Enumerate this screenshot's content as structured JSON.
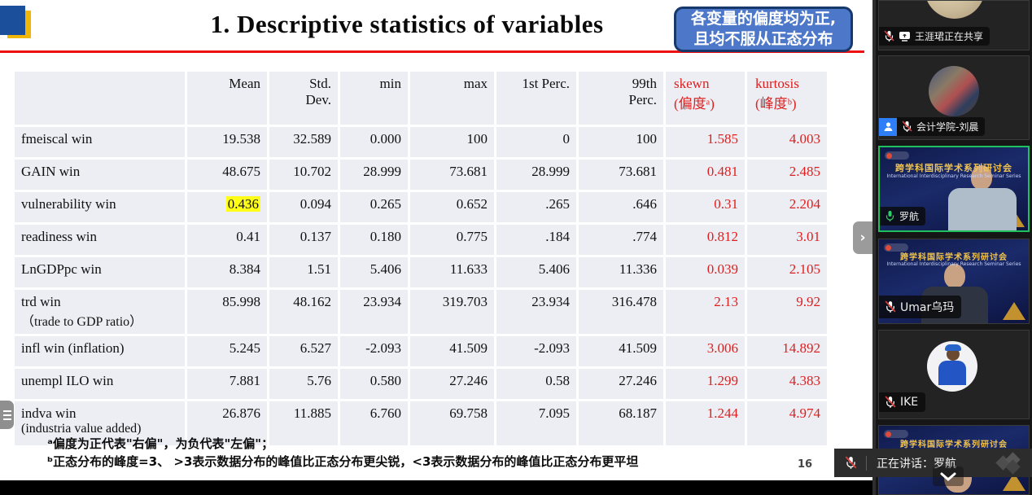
{
  "slide": {
    "title": "1. Descriptive statistics of variables",
    "callout_line1": "各变量的偏度均为正,",
    "callout_line2": "且均不服从正态分布",
    "footnote_a": "ᵃ偏度为正代表\"右偏\"，为负代表\"左偏\"；",
    "footnote_b": "ᵇ正态分布的峰度=3、 >3表示数据分布的峰值比正态分布更尖锐，<3表示数据分布的峰值比正态分布更平坦",
    "page_number": "16"
  },
  "table": {
    "headers": [
      {
        "l1": "",
        "l2": ""
      },
      {
        "l1": "Mean",
        "l2": ""
      },
      {
        "l1": "Std.",
        "l2": "Dev."
      },
      {
        "l1": "min",
        "l2": ""
      },
      {
        "l1": "max",
        "l2": ""
      },
      {
        "l1": "1st Perc.",
        "l2": ""
      },
      {
        "l1": "99th",
        "l2": "Perc."
      },
      {
        "l1": "skewn",
        "l2": "(偏度ᵃ)",
        "red": true
      },
      {
        "l1": "kurtosis",
        "l2": "(峰度ᵇ)",
        "red": true
      }
    ],
    "rows": [
      {
        "name": "fmeiscal win",
        "sub": "",
        "values": [
          "19.538",
          "32.589",
          "0.000",
          "100",
          "0",
          "100",
          "1.585",
          "4.003"
        ]
      },
      {
        "name": "GAIN win",
        "sub": "",
        "values": [
          "48.675",
          "10.702",
          "28.999",
          "73.681",
          "28.999",
          "73.681",
          "0.481",
          "2.485"
        ]
      },
      {
        "name": "vulnerability win",
        "sub": "",
        "highlight": 0,
        "values": [
          "0.436",
          "0.094",
          "0.265",
          "0.652",
          ".265",
          ".646",
          "0.31",
          "2.204"
        ]
      },
      {
        "name": "readiness win",
        "sub": "",
        "values": [
          "0.41",
          "0.137",
          "0.180",
          "0.775",
          ".184",
          ".774",
          "0.812",
          "3.01"
        ]
      },
      {
        "name": "LnGDPpc win",
        "sub": "",
        "values": [
          "8.384",
          "1.51",
          "5.406",
          "11.633",
          "5.406",
          "11.336",
          "0.039",
          "2.105"
        ]
      },
      {
        "name": "trd win",
        "sub": "（trade to GDP ratio）",
        "values": [
          "85.998",
          "48.162",
          "23.934",
          "319.703",
          "23.934",
          "316.478",
          "2.13",
          "9.92"
        ]
      },
      {
        "name": "infl win  (inflation)",
        "sub": "",
        "values": [
          "5.245",
          "6.527",
          "-2.093",
          "41.509",
          "-2.093",
          "41.509",
          "3.006",
          "14.892"
        ]
      },
      {
        "name": "unempl ILO win",
        "sub": "",
        "values": [
          "7.881",
          "5.76",
          "0.580",
          "27.246",
          "0.58",
          "27.246",
          "1.299",
          "4.383"
        ]
      },
      {
        "name": "indva win",
        "sub": "(industria value added)",
        "values": [
          "26.876",
          "11.885",
          "6.760",
          "69.758",
          "7.095",
          "68.187",
          "1.244",
          "4.974"
        ]
      }
    ]
  },
  "sidebar": {
    "participants": [
      {
        "label": "王涯珺正在共享"
      },
      {
        "label": "会计学院-刘晨"
      },
      {
        "label": "罗航"
      },
      {
        "label": "Umar乌玛"
      },
      {
        "label": "IKE"
      },
      {
        "label": ""
      }
    ],
    "video_bg_title": "跨学科国际学术系列研讨会",
    "video_bg_subtitle": "International Interdisciplinary Research Seminar Series"
  },
  "toast": {
    "speaking_text": "正在讲话：罗航"
  },
  "colors": {
    "table_red": "#dd1f1f",
    "highlight_yellow": "#ffff17",
    "callout_blue": "#4d77c8",
    "callout_border": "#16386b",
    "title_rule_red": "#ee1111",
    "active_speaker_green": "#1fc15f",
    "participant_badge_blue": "#2d7ef7",
    "video_bg_navy": "#1a2a6a",
    "video_title_gold": "#f2c44d"
  }
}
